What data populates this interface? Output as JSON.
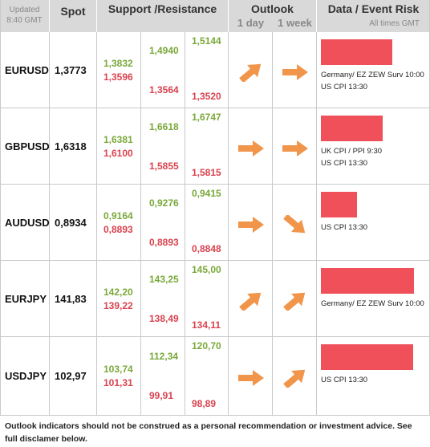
{
  "header": {
    "updated_label": "Updated",
    "updated_time": "8:40 GMT",
    "spot": "Spot",
    "sr": "Support /Resistance",
    "outlook": "Outlook",
    "day": "1 day",
    "week": "1 week",
    "data": "Data / Event Risk",
    "times": "All times GMT"
  },
  "rows": [
    {
      "pair": "EURUSD",
      "spot": "1,3773",
      "s1g": "1,3832",
      "s1r": "1,3596",
      "s2g": "1,4940",
      "s2r": "1,3564",
      "s3g": "1,5144",
      "s3r": "1,3520",
      "day": "up",
      "week": "right",
      "risk": 0.77,
      "ev1": "Germany/ EZ ZEW Surv 10:00",
      "ev2": "US CPI 13:30"
    },
    {
      "pair": "GBPUSD",
      "spot": "1,6318",
      "s1g": "1,6381",
      "s1r": "1,6100",
      "s2g": "1,6618",
      "s2r": "1,5855",
      "s3g": "1,6747",
      "s3r": "1,5815",
      "day": "right",
      "week": "right",
      "risk": 0.66,
      "ev1": "UK CPI / PPI 9:30",
      "ev2": "US CPI 13:30"
    },
    {
      "pair": "AUDUSD",
      "spot": "0,8934",
      "s1g": "0,9164",
      "s1r": "0,8893",
      "s2g": "0,9276",
      "s2r": "0,8893",
      "s3g": "0,9415",
      "s3r": "0,8848",
      "day": "right",
      "week": "down",
      "risk": 0.39,
      "ev1": "US CPI 13:30",
      "ev2": ""
    },
    {
      "pair": "EURJPY",
      "spot": "141,83",
      "s1g": "142,20",
      "s1r": "139,22",
      "s2g": "143,25",
      "s2r": "138,49",
      "s3g": "145,00",
      "s3r": "134,11",
      "day": "up",
      "week": "up",
      "risk": 1.0,
      "ev1": "Germany/ EZ ZEW Surv 10:00",
      "ev2": ""
    },
    {
      "pair": "USDJPY",
      "spot": "102,97",
      "s1g": "103,74",
      "s1r": "101,31",
      "s2g": "112,34",
      "s2r": "99,91",
      "s3g": "120,70",
      "s3r": "98,89",
      "day": "right",
      "week": "up",
      "risk": 0.99,
      "ev1": "US CPI 13:30",
      "ev2": ""
    }
  ],
  "footer": "Outlook indicators should not be construed as a personal recommendation or investment advice. See full disclamer below.",
  "colors": {
    "green": "#7aa83a",
    "red": "#d8434f",
    "arrow": "#f0954a",
    "risk": "#ef5059",
    "header": "#d9d9d9"
  }
}
